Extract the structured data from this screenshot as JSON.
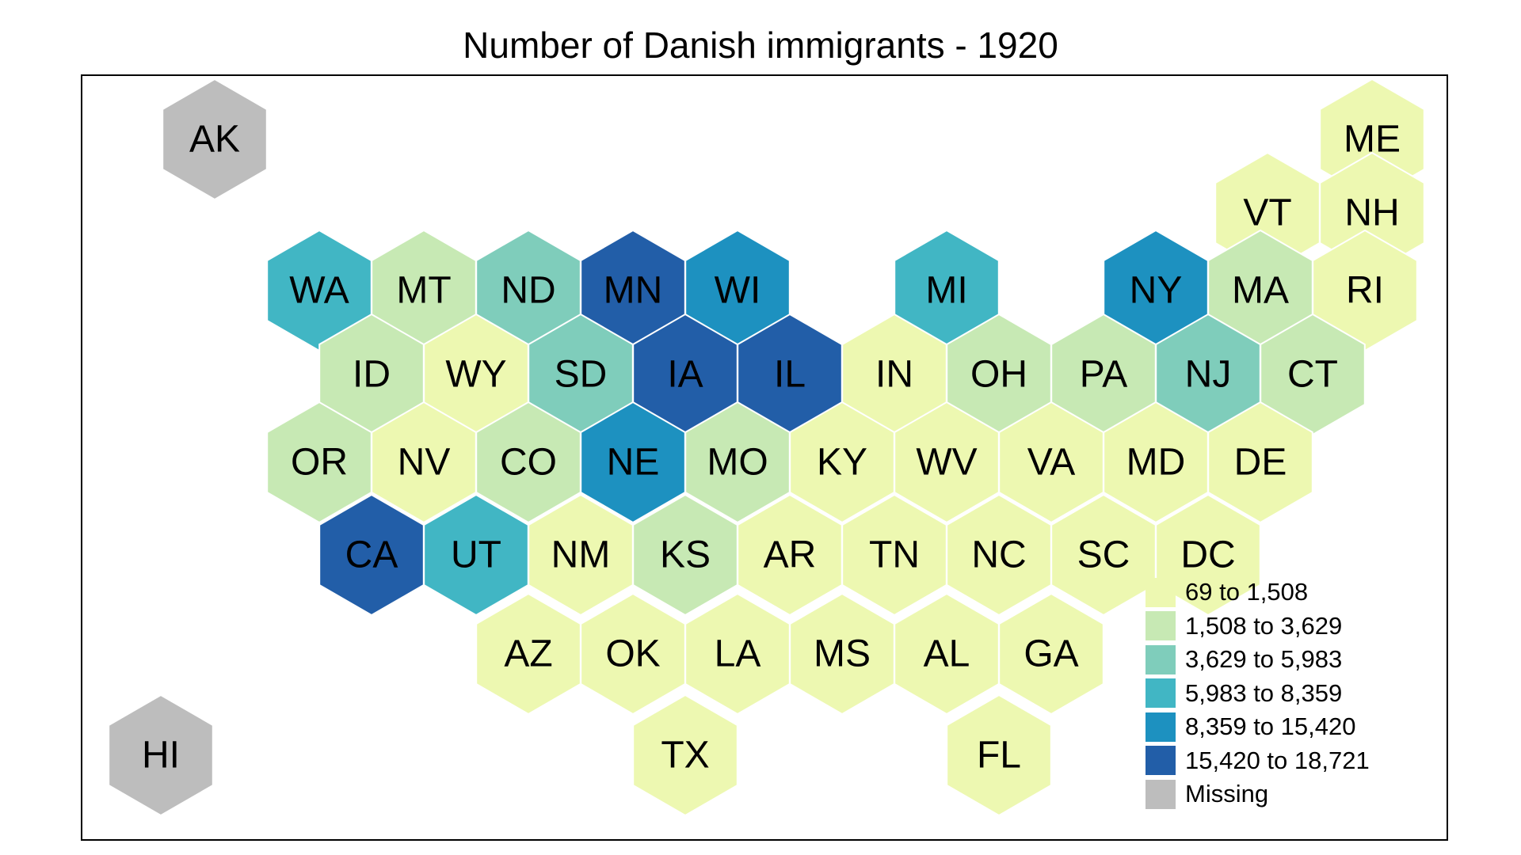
{
  "title": "Number of Danish immigrants - 1920",
  "legend": [
    {
      "label": "69 to 1,508",
      "color": "#edf8b1",
      "bin": 1
    },
    {
      "label": "1,508 to 3,629",
      "color": "#c7e9b4",
      "bin": 2
    },
    {
      "label": "3,629 to 5,983",
      "color": "#7fcdbb",
      "bin": 3
    },
    {
      "label": "5,983 to 8,359",
      "color": "#41b6c4",
      "bin": 4
    },
    {
      "label": "8,359 to 15,420",
      "color": "#1d91c0",
      "bin": 5
    },
    {
      "label": "15,420 to 18,721",
      "color": "#225ea8",
      "bin": 6
    },
    {
      "label": "Missing",
      "color": "#bdbdbd",
      "bin": 0
    }
  ],
  "states": [
    {
      "abbr": "AK",
      "bin": 0
    },
    {
      "abbr": "HI",
      "bin": 0
    },
    {
      "abbr": "ME",
      "bin": 1
    },
    {
      "abbr": "VT",
      "bin": 1
    },
    {
      "abbr": "NH",
      "bin": 1
    },
    {
      "abbr": "WA",
      "bin": 4
    },
    {
      "abbr": "MT",
      "bin": 2
    },
    {
      "abbr": "ND",
      "bin": 3
    },
    {
      "abbr": "MN",
      "bin": 6
    },
    {
      "abbr": "WI",
      "bin": 5
    },
    {
      "abbr": "MI",
      "bin": 4
    },
    {
      "abbr": "NY",
      "bin": 5
    },
    {
      "abbr": "MA",
      "bin": 2
    },
    {
      "abbr": "RI",
      "bin": 1
    },
    {
      "abbr": "ID",
      "bin": 2
    },
    {
      "abbr": "WY",
      "bin": 1
    },
    {
      "abbr": "SD",
      "bin": 3
    },
    {
      "abbr": "IA",
      "bin": 6
    },
    {
      "abbr": "IL",
      "bin": 6
    },
    {
      "abbr": "IN",
      "bin": 1
    },
    {
      "abbr": "OH",
      "bin": 2
    },
    {
      "abbr": "PA",
      "bin": 2
    },
    {
      "abbr": "NJ",
      "bin": 3
    },
    {
      "abbr": "CT",
      "bin": 2
    },
    {
      "abbr": "OR",
      "bin": 2
    },
    {
      "abbr": "NV",
      "bin": 1
    },
    {
      "abbr": "CO",
      "bin": 2
    },
    {
      "abbr": "NE",
      "bin": 5
    },
    {
      "abbr": "MO",
      "bin": 2
    },
    {
      "abbr": "KY",
      "bin": 1
    },
    {
      "abbr": "WV",
      "bin": 1
    },
    {
      "abbr": "VA",
      "bin": 1
    },
    {
      "abbr": "MD",
      "bin": 1
    },
    {
      "abbr": "DE",
      "bin": 1
    },
    {
      "abbr": "CA",
      "bin": 6
    },
    {
      "abbr": "UT",
      "bin": 4
    },
    {
      "abbr": "NM",
      "bin": 1
    },
    {
      "abbr": "KS",
      "bin": 2
    },
    {
      "abbr": "AR",
      "bin": 1
    },
    {
      "abbr": "TN",
      "bin": 1
    },
    {
      "abbr": "NC",
      "bin": 1
    },
    {
      "abbr": "SC",
      "bin": 1
    },
    {
      "abbr": "DC",
      "bin": 1
    },
    {
      "abbr": "AZ",
      "bin": 1
    },
    {
      "abbr": "OK",
      "bin": 1
    },
    {
      "abbr": "LA",
      "bin": 1
    },
    {
      "abbr": "MS",
      "bin": 1
    },
    {
      "abbr": "AL",
      "bin": 1
    },
    {
      "abbr": "GA",
      "bin": 1
    },
    {
      "abbr": "TX",
      "bin": 1
    },
    {
      "abbr": "FL",
      "bin": 1
    }
  ]
}
